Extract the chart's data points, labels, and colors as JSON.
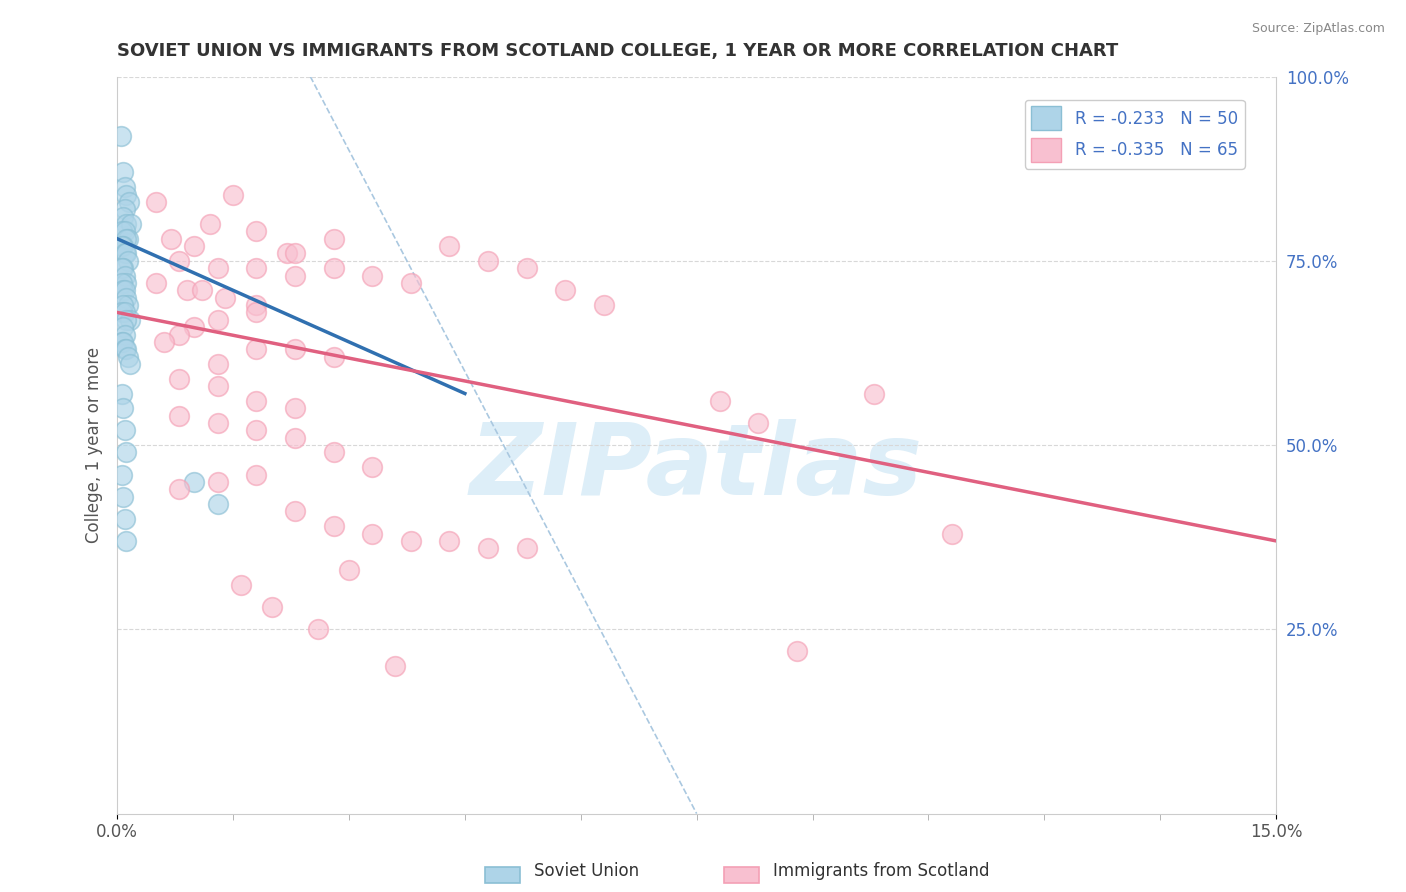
{
  "title": "SOVIET UNION VS IMMIGRANTS FROM SCOTLAND COLLEGE, 1 YEAR OR MORE CORRELATION CHART",
  "source": "Source: ZipAtlas.com",
  "ylabel": "College, 1 year or more",
  "xlim": [
    0.0,
    15.0
  ],
  "ylim": [
    0.0,
    100.0
  ],
  "y_ticks_right": [
    25.0,
    50.0,
    75.0,
    100.0
  ],
  "legend_label1": "Soviet Union",
  "legend_label2": "Immigrants from Scotland",
  "blue_color": "#8bbfd4",
  "pink_color": "#f4a0b5",
  "blue_fill": "#aed4e8",
  "pink_fill": "#f8c0d0",
  "trend_blue": "#3070b0",
  "trend_pink": "#e06080",
  "diag_color": "#aac8e0",
  "grid_color": "#d8d8d8",
  "watermark_color": "#ddeef8",
  "blue_points_x": [
    0.05,
    0.08,
    0.1,
    0.12,
    0.15,
    0.1,
    0.08,
    0.12,
    0.18,
    0.06,
    0.1,
    0.14,
    0.12,
    0.08,
    0.06,
    0.1,
    0.12,
    0.14,
    0.08,
    0.06,
    0.1,
    0.12,
    0.06,
    0.08,
    0.1,
    0.12,
    0.14,
    0.08,
    0.06,
    0.1,
    0.16,
    0.12,
    0.08,
    0.1,
    0.06,
    0.08,
    0.1,
    0.12,
    0.14,
    0.16,
    0.06,
    0.08,
    0.1,
    0.12,
    0.06,
    0.08,
    0.1,
    0.12,
    1.0,
    1.3
  ],
  "blue_points_y": [
    92,
    87,
    85,
    84,
    83,
    82,
    81,
    80,
    80,
    79,
    79,
    78,
    78,
    77,
    77,
    76,
    76,
    75,
    74,
    74,
    73,
    72,
    72,
    71,
    71,
    70,
    69,
    69,
    68,
    68,
    67,
    67,
    66,
    65,
    64,
    64,
    63,
    63,
    62,
    61,
    57,
    55,
    52,
    49,
    46,
    43,
    40,
    37,
    45,
    42
  ],
  "pink_points_x": [
    0.5,
    1.2,
    1.5,
    1.8,
    0.7,
    1.0,
    2.2,
    2.8,
    0.8,
    1.3,
    1.8,
    2.3,
    0.5,
    0.9,
    1.1,
    1.4,
    1.8,
    2.3,
    2.8,
    3.3,
    3.8,
    4.3,
    4.8,
    5.3,
    5.8,
    6.3,
    1.8,
    1.3,
    1.0,
    0.8,
    0.6,
    1.8,
    2.3,
    2.8,
    1.3,
    0.8,
    1.3,
    1.8,
    2.3,
    0.8,
    1.3,
    1.8,
    2.3,
    2.8,
    3.3,
    1.8,
    1.3,
    0.8,
    7.8,
    8.3,
    8.8,
    9.8,
    10.8,
    2.3,
    2.8,
    3.3,
    3.8,
    4.3,
    4.8,
    5.3,
    1.6,
    2.0,
    2.6,
    3.0,
    3.6
  ],
  "pink_points_y": [
    83,
    80,
    84,
    79,
    78,
    77,
    76,
    78,
    75,
    74,
    74,
    73,
    72,
    71,
    71,
    70,
    69,
    76,
    74,
    73,
    72,
    77,
    75,
    74,
    71,
    69,
    68,
    67,
    66,
    65,
    64,
    63,
    63,
    62,
    61,
    59,
    58,
    56,
    55,
    54,
    53,
    52,
    51,
    49,
    47,
    46,
    45,
    44,
    56,
    53,
    22,
    57,
    38,
    41,
    39,
    38,
    37,
    37,
    36,
    36,
    31,
    28,
    25,
    33,
    20
  ],
  "blue_trend_x0": 0.0,
  "blue_trend_y0": 78.0,
  "blue_trend_x1": 4.5,
  "blue_trend_y1": 57.0,
  "pink_trend_x0": 0.0,
  "pink_trend_y0": 68.0,
  "pink_trend_x1": 15.0,
  "pink_trend_y1": 37.0,
  "diag_x0": 2.5,
  "diag_y0": 100.0,
  "diag_x1": 7.5,
  "diag_y1": 0.0
}
